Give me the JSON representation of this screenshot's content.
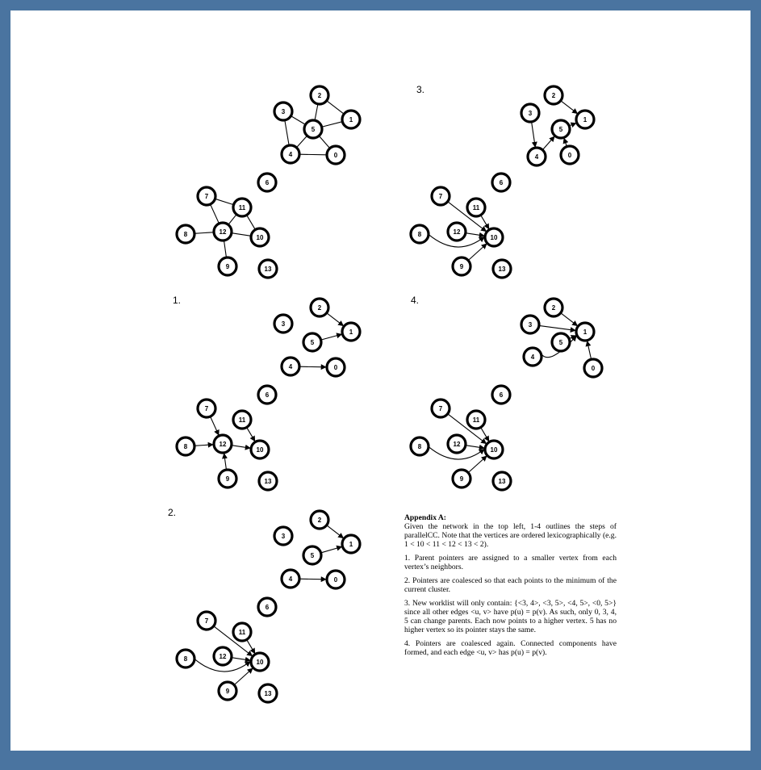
{
  "panels": [
    {
      "label": "",
      "edges": [
        {
          "from": "2",
          "to": "5",
          "directed": false
        },
        {
          "from": "2",
          "to": "1",
          "directed": false
        },
        {
          "from": "3",
          "to": "5",
          "directed": false
        },
        {
          "from": "3",
          "to": "4",
          "directed": false
        },
        {
          "from": "5",
          "to": "1",
          "directed": false
        },
        {
          "from": "5",
          "to": "4",
          "directed": false
        },
        {
          "from": "5",
          "to": "0",
          "directed": false
        },
        {
          "from": "4",
          "to": "0",
          "directed": false
        },
        {
          "from": "7",
          "to": "11",
          "directed": false
        },
        {
          "from": "7",
          "to": "12",
          "directed": false
        },
        {
          "from": "11",
          "to": "12",
          "directed": false
        },
        {
          "from": "11",
          "to": "10",
          "directed": false
        },
        {
          "from": "8",
          "to": "12",
          "directed": false
        },
        {
          "from": "12",
          "to": "10",
          "directed": false
        },
        {
          "from": "12",
          "to": "9",
          "directed": false
        }
      ]
    },
    {
      "label": "1.",
      "edges": [
        {
          "from": "2",
          "to": "1",
          "directed": true
        },
        {
          "from": "5",
          "to": "1",
          "directed": true
        },
        {
          "from": "4",
          "to": "0",
          "directed": true
        },
        {
          "from": "7",
          "to": "12",
          "directed": true
        },
        {
          "from": "8",
          "to": "12",
          "directed": true
        },
        {
          "from": "9",
          "to": "12",
          "directed": true
        },
        {
          "from": "12",
          "to": "10",
          "directed": true
        },
        {
          "from": "11",
          "to": "10",
          "directed": true
        }
      ]
    },
    {
      "label": "2.",
      "edges": [
        {
          "from": "2",
          "to": "1",
          "directed": true
        },
        {
          "from": "5",
          "to": "1",
          "directed": true
        },
        {
          "from": "4",
          "to": "0",
          "directed": true
        },
        {
          "from": "7",
          "to": "10",
          "directed": true
        },
        {
          "from": "11",
          "to": "10",
          "directed": true
        },
        {
          "from": "12",
          "to": "10",
          "directed": true
        },
        {
          "from": "8",
          "to": "10",
          "directed": true,
          "curved": true
        },
        {
          "from": "9",
          "to": "10",
          "directed": true
        }
      ]
    },
    {
      "label": "3.",
      "edges": [
        {
          "from": "2",
          "to": "1",
          "directed": true
        },
        {
          "from": "5",
          "to": "1",
          "directed": true
        },
        {
          "from": "3",
          "to": "4",
          "directed": true
        },
        {
          "from": "4",
          "to": "5",
          "directed": true
        },
        {
          "from": "0",
          "to": "5",
          "directed": true
        },
        {
          "from": "7",
          "to": "10",
          "directed": true
        },
        {
          "from": "11",
          "to": "10",
          "directed": true
        },
        {
          "from": "12",
          "to": "10",
          "directed": true
        },
        {
          "from": "8",
          "to": "10",
          "directed": true,
          "curved": true
        },
        {
          "from": "9",
          "to": "10",
          "directed": true
        }
      ]
    },
    {
      "label": "4.",
      "edges": [
        {
          "from": "2",
          "to": "1",
          "directed": true
        },
        {
          "from": "3",
          "to": "1",
          "directed": true
        },
        {
          "from": "5",
          "to": "1",
          "directed": true
        },
        {
          "from": "4",
          "to": "1",
          "directed": true,
          "curved": true
        },
        {
          "from": "0",
          "to": "1",
          "directed": true
        },
        {
          "from": "7",
          "to": "10",
          "directed": true
        },
        {
          "from": "11",
          "to": "10",
          "directed": true
        },
        {
          "from": "12",
          "to": "10",
          "directed": true
        },
        {
          "from": "8",
          "to": "10",
          "directed": true,
          "curved": true
        },
        {
          "from": "9",
          "to": "10",
          "directed": true
        }
      ]
    }
  ],
  "node_labels": [
    "0",
    "1",
    "2",
    "3",
    "4",
    "5",
    "6",
    "7",
    "8",
    "9",
    "10",
    "11",
    "12",
    "13"
  ],
  "appendix": {
    "title": "Appendix A:",
    "intro": "Given the network in the top left, 1-4 outlines the steps of parallelCC. Note that the vertices are ordered lexicographically (e.g. 1 < 10 < 11 < 12 < 13 < 2).",
    "step1": "1. Parent pointers are assigned to a smaller vertex from each vertex’s neighbors.",
    "step2": "2. Pointers are coalesced so that each points to the minimum of the current cluster.",
    "step3": "3. New worklist will only contain: {<3, 4>, <3, 5>, <4, 5>, <0, 5>} since all other edges <u, v> have p(u) = p(v). As such, only 0, 3, 4, 5 can change parents. Each now points to a higher vertex. 5 has no higher vertex so its pointer stays the same.",
    "step4": "4. Pointers are coalesced again. Connected components have formed, and each edge <u, v> has p(u) = p(v)."
  }
}
